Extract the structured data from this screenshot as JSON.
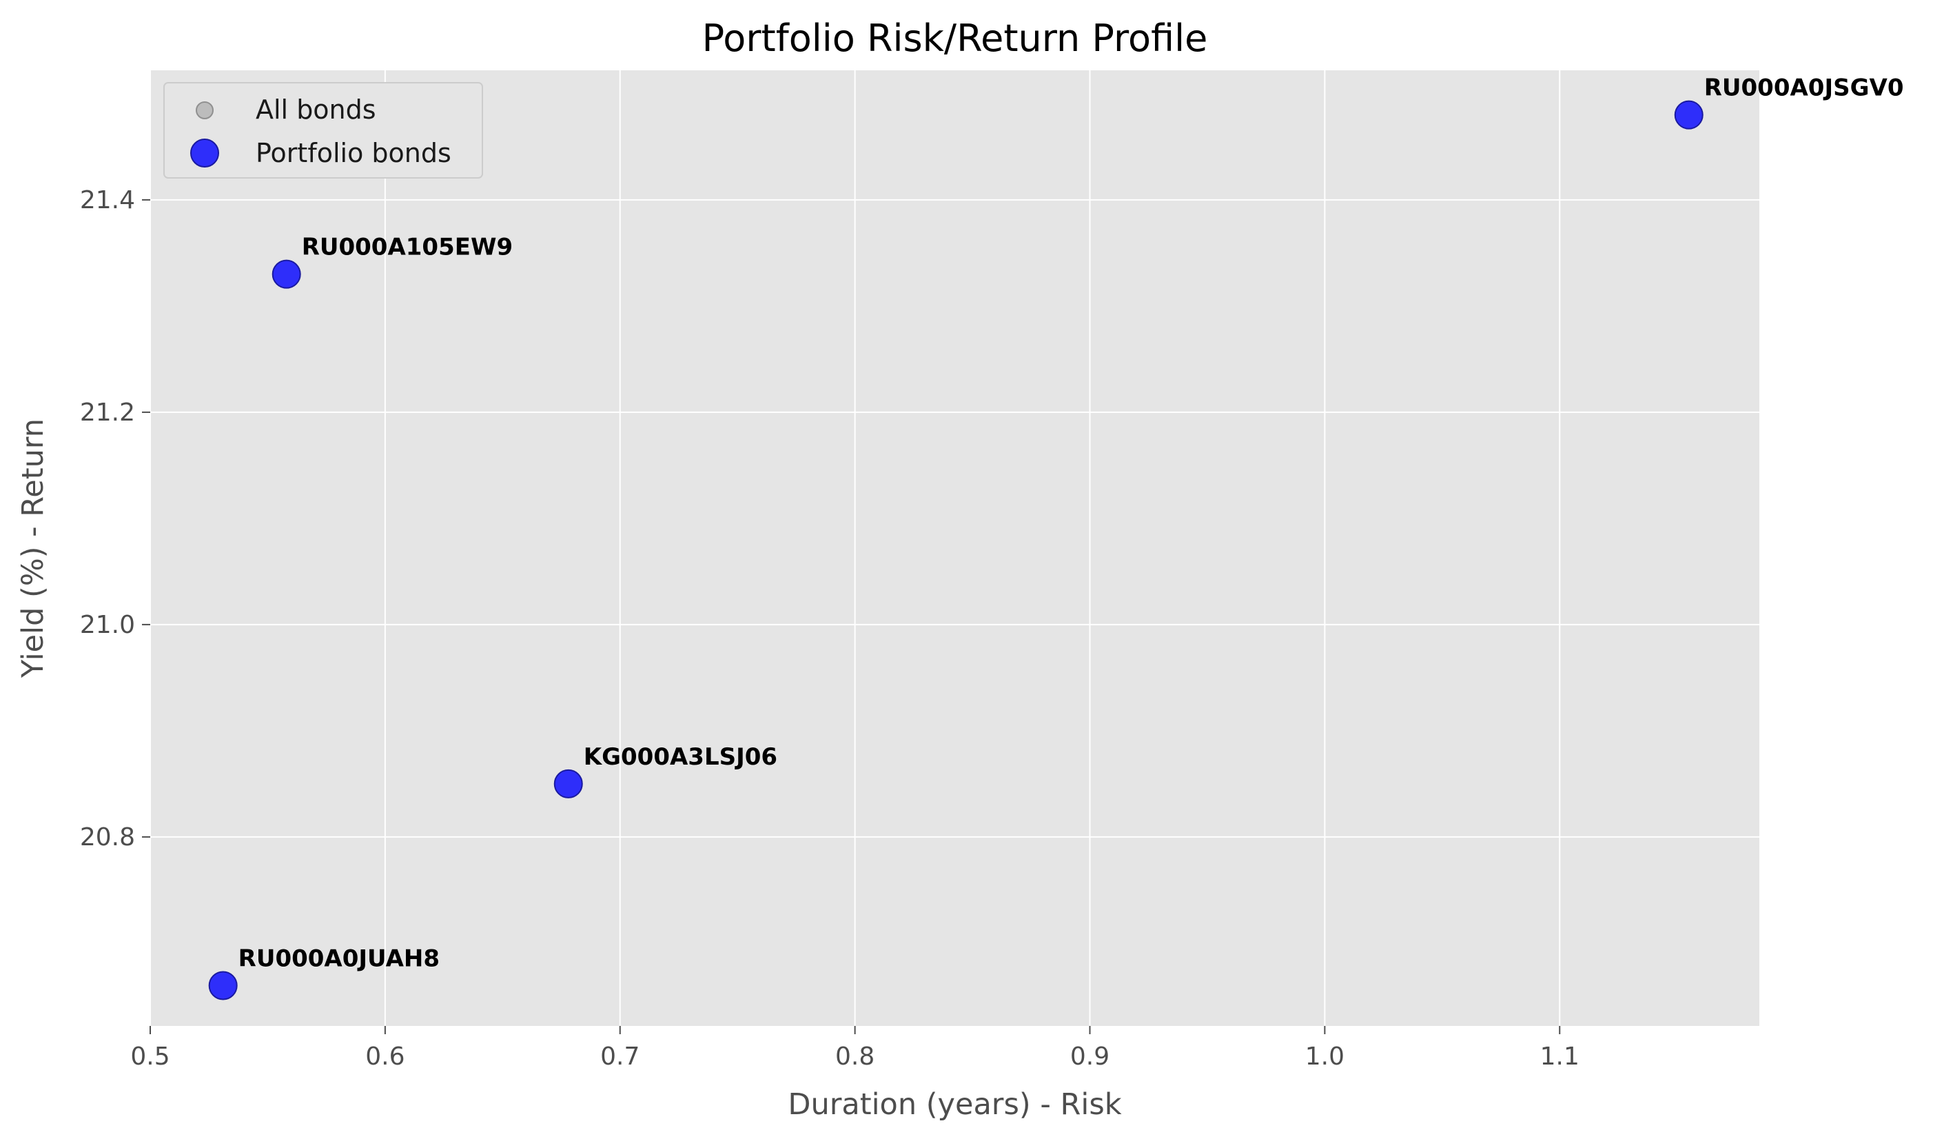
{
  "chart_data": {
    "type": "scatter",
    "title": "Portfolio Risk/Return Profile",
    "xlabel": "Duration (years) - Risk",
    "ylabel": "Yield (%) - Return",
    "xlim": [
      0.5,
      1.185
    ],
    "ylim": [
      20.622,
      21.522
    ],
    "xticks": [
      0.5,
      0.6,
      0.7,
      0.8,
      0.9,
      1.0,
      1.1
    ],
    "xtick_labels": [
      "0.5",
      "0.6",
      "0.7",
      "0.8",
      "0.9",
      "1.0",
      "1.1"
    ],
    "yticks": [
      20.8,
      21.0,
      21.2,
      21.4
    ],
    "ytick_labels": [
      "20.8",
      "21.0",
      "21.2",
      "21.4"
    ],
    "grid": true,
    "legend_position": "top-left",
    "series": [
      {
        "name": "All bonds",
        "color": "#a0a0a0",
        "points": []
      },
      {
        "name": "Portfolio bonds",
        "color": "#0000ff",
        "points": [
          {
            "x": 0.531,
            "y": 20.66,
            "label": "RU000A0JUAH8"
          },
          {
            "x": 0.558,
            "y": 21.33,
            "label": "RU000A105EW9"
          },
          {
            "x": 0.678,
            "y": 20.85,
            "label": "KG000A3LSJ06"
          },
          {
            "x": 1.155,
            "y": 21.48,
            "label": "RU000A0JSGV0"
          }
        ]
      }
    ],
    "colors": {
      "plot_background": "#e5e5e5",
      "grid": "#ffffff",
      "tick_text": "#4d4d4d"
    }
  }
}
